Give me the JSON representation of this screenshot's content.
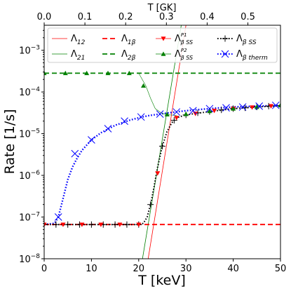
{
  "chart_data": {
    "type": "line",
    "xlabel": "T [keV]",
    "ylabel": "Rate [1/s]",
    "top_xlabel": "T [GK]",
    "xlim": [
      0,
      50
    ],
    "ylim_log10": [
      -8,
      -2.4
    ],
    "top_xlim": [
      0,
      0.58
    ],
    "x_ticks": [
      "0",
      "10",
      "20",
      "30",
      "40",
      "50"
    ],
    "top_x_ticks": [
      "0.0",
      "0.1",
      "0.2",
      "0.3",
      "0.4",
      "0.5"
    ],
    "y_ticks": [
      {
        "base": "10",
        "exp": "−8",
        "log": -8
      },
      {
        "base": "10",
        "exp": "−7",
        "log": -7
      },
      {
        "base": "10",
        "exp": "−6",
        "log": -6
      },
      {
        "base": "10",
        "exp": "−5",
        "log": -5
      },
      {
        "base": "10",
        "exp": "−4",
        "log": -4
      },
      {
        "base": "10",
        "exp": "−3",
        "log": -3
      }
    ],
    "legend": [
      {
        "id": "l12",
        "base": "Λ",
        "sub": "12",
        "sup": ""
      },
      {
        "id": "l1b",
        "base": "Λ",
        "sub": "1β",
        "sup": ""
      },
      {
        "id": "p1",
        "base": "Λ",
        "sub": "β SS",
        "sup": "P1"
      },
      {
        "id": "bss",
        "base": "Λ",
        "sub": "β SS",
        "sup": ""
      },
      {
        "id": "l21",
        "base": "Λ",
        "sub": "21",
        "sup": ""
      },
      {
        "id": "l2b",
        "base": "Λ",
        "sub": "2β",
        "sup": ""
      },
      {
        "id": "p2",
        "base": "Λ",
        "sub": "β SS",
        "sup": "P2"
      },
      {
        "id": "btherm",
        "base": "Λ",
        "sub": "β therm",
        "sup": ""
      }
    ],
    "series": [
      {
        "id": "l12",
        "color": "#ff0000",
        "style": "solid",
        "width": 0.8,
        "points": [
          [
            22.0,
            -8.0
          ],
          [
            30.0,
            -2.4
          ]
        ]
      },
      {
        "id": "l21",
        "color": "#008000",
        "style": "solid",
        "width": 0.8,
        "points": [
          [
            20.8,
            -8.0
          ],
          [
            29.0,
            -2.4
          ]
        ]
      },
      {
        "id": "l1b",
        "color": "#ff0000",
        "style": "dashed",
        "width": 1.8,
        "points": [
          [
            0,
            -7.18
          ],
          [
            50,
            -7.18
          ]
        ]
      },
      {
        "id": "l2b",
        "color": "#008000",
        "style": "dashed",
        "width": 1.8,
        "points": [
          [
            0,
            -3.55
          ],
          [
            50,
            -3.55
          ]
        ]
      },
      {
        "id": "btherm",
        "color": "#0000ff",
        "style": "dotted",
        "width": 2.4,
        "points": [
          [
            0,
            -7.18
          ],
          [
            2.2,
            -7.15
          ],
          [
            3.0,
            -7.0
          ],
          [
            4.0,
            -6.55
          ],
          [
            5.0,
            -6.1
          ],
          [
            6.0,
            -5.8
          ],
          [
            7.0,
            -5.58
          ],
          [
            8.0,
            -5.4
          ],
          [
            10.0,
            -5.15
          ],
          [
            12.0,
            -4.98
          ],
          [
            15.0,
            -4.8
          ],
          [
            18.0,
            -4.68
          ],
          [
            20.0,
            -4.62
          ],
          [
            22.0,
            -4.57
          ],
          [
            25.0,
            -4.52
          ],
          [
            30.0,
            -4.45
          ],
          [
            35.0,
            -4.4
          ],
          [
            40.0,
            -4.36
          ],
          [
            45.0,
            -4.34
          ],
          [
            50.0,
            -4.32
          ]
        ]
      },
      {
        "id": "bss",
        "color": "#000000",
        "style": "dotted",
        "width": 2.0,
        "points": [
          [
            0,
            -7.18
          ],
          [
            10,
            -7.18
          ],
          [
            20.0,
            -7.18
          ],
          [
            21.0,
            -7.15
          ],
          [
            21.8,
            -7.0
          ],
          [
            22.5,
            -6.7
          ],
          [
            23.2,
            -6.3
          ],
          [
            24.0,
            -5.8
          ],
          [
            25.0,
            -5.3
          ],
          [
            26.0,
            -4.95
          ],
          [
            27.0,
            -4.74
          ],
          [
            28.0,
            -4.62
          ],
          [
            30.0,
            -4.55
          ],
          [
            35.0,
            -4.47
          ],
          [
            40.0,
            -4.4
          ],
          [
            45.0,
            -4.36
          ],
          [
            50.0,
            -4.33
          ]
        ]
      },
      {
        "id": "green_transition",
        "color": "#008000",
        "style": "solid",
        "width": 0.6,
        "points": [
          [
            20.0,
            -3.55
          ],
          [
            21.5,
            -3.85
          ],
          [
            22.5,
            -4.15
          ],
          [
            23.5,
            -4.4
          ],
          [
            25.0,
            -4.52
          ],
          [
            26.5,
            -4.55
          ],
          [
            28.0,
            -4.56
          ]
        ]
      }
    ],
    "markers": [
      {
        "id": "bss_markers",
        "shape": "plus",
        "color": "#000000",
        "points": [
          [
            0,
            -7.18
          ],
          [
            2.5,
            -7.18
          ],
          [
            5,
            -7.18
          ],
          [
            7.5,
            -7.18
          ],
          [
            10,
            -7.18
          ],
          [
            12.5,
            -7.18
          ],
          [
            15,
            -7.18
          ],
          [
            17.5,
            -7.18
          ],
          [
            20,
            -7.18
          ],
          [
            22.5,
            -6.7
          ],
          [
            25,
            -5.3
          ],
          [
            27.5,
            -4.68
          ],
          [
            30,
            -4.55
          ],
          [
            32.5,
            -4.5
          ],
          [
            35,
            -4.47
          ],
          [
            37.5,
            -4.43
          ],
          [
            40,
            -4.4
          ],
          [
            42.5,
            -4.38
          ],
          [
            45,
            -4.36
          ],
          [
            47.5,
            -4.34
          ],
          [
            50,
            -4.33
          ]
        ]
      },
      {
        "id": "p1_markers",
        "shape": "tri-down",
        "color": "#ff0000",
        "points": [
          [
            0,
            -7.18
          ],
          [
            4,
            -7.18
          ],
          [
            8,
            -7.18
          ],
          [
            12,
            -7.18
          ],
          [
            16,
            -7.18
          ],
          [
            20,
            -7.18
          ],
          [
            24,
            -5.95
          ],
          [
            28,
            -4.62
          ],
          [
            32,
            -4.52
          ],
          [
            36,
            -4.45
          ],
          [
            40,
            -4.4
          ],
          [
            44,
            -4.37
          ],
          [
            48,
            -4.34
          ]
        ]
      },
      {
        "id": "p2_markers",
        "shape": "tri-up",
        "color": "#008000",
        "points": [
          [
            0,
            -3.55
          ],
          [
            4.5,
            -3.55
          ],
          [
            9,
            -3.55
          ],
          [
            13.5,
            -3.55
          ],
          [
            18,
            -3.55
          ],
          [
            21,
            -3.85
          ],
          [
            26,
            -4.54
          ],
          [
            30,
            -4.53
          ],
          [
            35,
            -4.46
          ],
          [
            40,
            -4.4
          ],
          [
            45,
            -4.36
          ],
          [
            50,
            -4.32
          ]
        ]
      },
      {
        "id": "btherm_markers",
        "shape": "x",
        "color": "#0000ff",
        "points": [
          [
            3.0,
            -7.0
          ],
          [
            6.5,
            -5.48
          ],
          [
            10.0,
            -5.15
          ],
          [
            13.5,
            -4.88
          ],
          [
            17.0,
            -4.7
          ],
          [
            20.5,
            -4.6
          ],
          [
            24.5,
            -4.53
          ],
          [
            28.0,
            -4.48
          ],
          [
            31.5,
            -4.45
          ],
          [
            35.0,
            -4.4
          ],
          [
            38.5,
            -4.38
          ],
          [
            42.0,
            -4.36
          ],
          [
            45.5,
            -4.34
          ],
          [
            49.0,
            -4.32
          ]
        ]
      }
    ]
  }
}
